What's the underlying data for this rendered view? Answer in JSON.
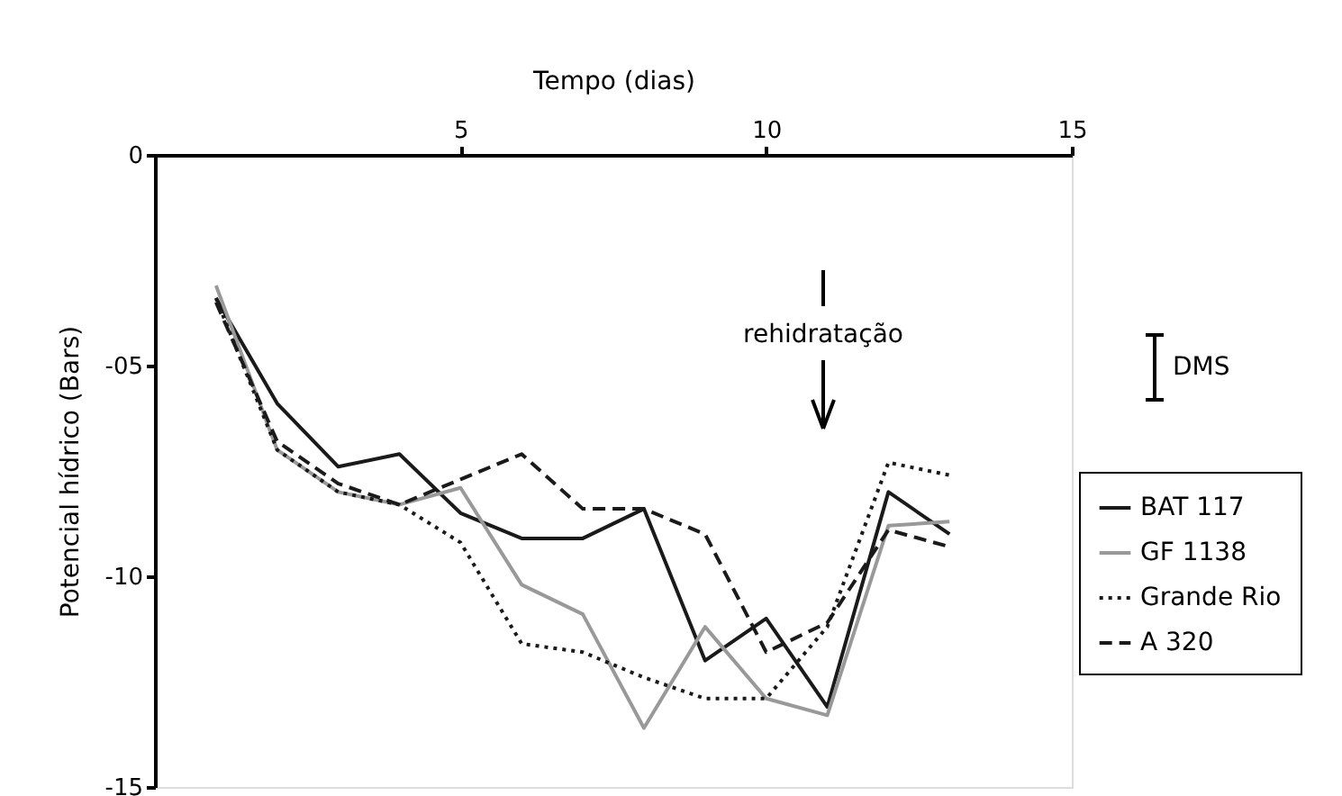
{
  "chart_data": {
    "type": "line",
    "xlabel": "Tempo (dias)",
    "ylabel": "Potencial hídrico (Bars)",
    "x": [
      1,
      2,
      3,
      4,
      5,
      6,
      7,
      8,
      9,
      10,
      11,
      12,
      13
    ],
    "series": [
      {
        "name": "BAT 117",
        "color": "#1a1a1a",
        "line_style": "solid",
        "values": [
          -3.4,
          -5.9,
          -7.4,
          -7.1,
          -8.5,
          -9.1,
          -9.1,
          -8.4,
          -12.0,
          -11.0,
          -13.1,
          -8.0,
          -9.0
        ]
      },
      {
        "name": "GF 1138",
        "color": "#999999",
        "line_style": "solid",
        "values": [
          -3.1,
          -7.0,
          -8.0,
          -8.3,
          -7.9,
          -10.2,
          -10.9,
          -13.6,
          -11.2,
          -12.9,
          -13.3,
          -8.8,
          -8.7
        ]
      },
      {
        "name": "Grande Rio",
        "color": "#1a1a1a",
        "line_style": "dotted",
        "values": [
          -3.4,
          -7.0,
          -8.0,
          -8.3,
          -9.2,
          -11.6,
          -11.8,
          -12.4,
          -12.9,
          -12.9,
          -11.2,
          -7.3,
          -7.6
        ]
      },
      {
        "name": "A 320",
        "color": "#1a1a1a",
        "line_style": "dashed",
        "values": [
          -3.5,
          -6.8,
          -7.8,
          -8.3,
          -7.7,
          -7.1,
          -8.4,
          -8.4,
          -9.0,
          -11.8,
          -11.1,
          -8.9,
          -9.3
        ]
      }
    ],
    "xlim": [
      0,
      15
    ],
    "xticks": [
      5,
      10,
      15
    ],
    "ylim": [
      -15,
      0
    ],
    "yticks": [
      0,
      {
        "value": -5,
        "label": "-05"
      },
      -10,
      -15
    ],
    "annotations": [
      "rehidratação",
      "DMS"
    ],
    "legend": "right",
    "grid": false,
    "marker": "none"
  }
}
